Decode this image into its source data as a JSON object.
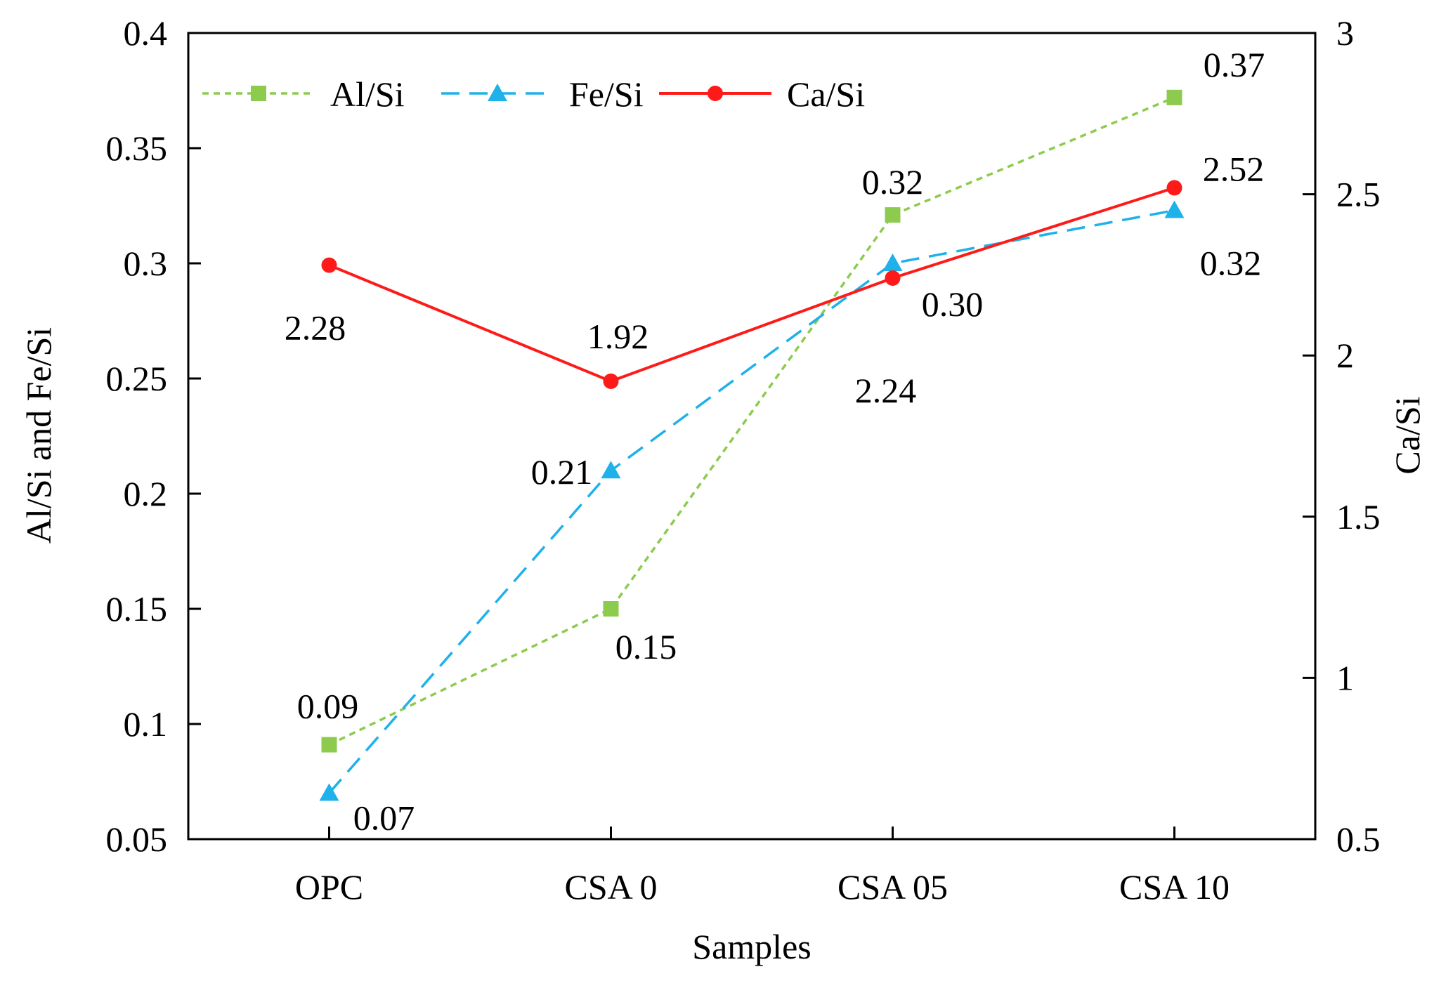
{
  "chart_data": {
    "type": "line",
    "title": "",
    "xlabel": "Samples",
    "ylabel_left": "Al/Si and Fe/Si",
    "ylabel_right": "Ca/Si",
    "categories": [
      "OPC",
      "CSA 0",
      "CSA 05",
      "CSA 10"
    ],
    "ylim_left": [
      0.05,
      0.4
    ],
    "ylim_right": [
      0.5,
      3
    ],
    "yticks_left": [
      "0.05",
      "0.1",
      "0.15",
      "0.2",
      "0.25",
      "0.3",
      "0.35",
      "0.4"
    ],
    "yticks_right": [
      "0.5",
      "1",
      "1.5",
      "2",
      "2.5",
      "3"
    ],
    "legend_position": "top-left",
    "grid": false,
    "series": [
      {
        "name": "Al/Si",
        "axis": "left",
        "color": "#8DCB4F",
        "dash": "short-dash",
        "marker": "square",
        "values": [
          0.091,
          0.15,
          0.321,
          0.372
        ],
        "data_labels": [
          "0.09",
          "0.15",
          "0.32",
          "0.37"
        ]
      },
      {
        "name": "Fe/Si",
        "axis": "left",
        "color": "#1EB1EA",
        "dash": "long-dash",
        "marker": "triangle",
        "values": [
          0.07,
          0.21,
          0.3,
          0.323
        ],
        "data_labels": [
          "0.07",
          "0.21",
          "0.30",
          "0.32"
        ]
      },
      {
        "name": "Ca/Si",
        "axis": "right",
        "color": "#FF1A1A",
        "dash": "solid",
        "marker": "circle",
        "values": [
          2.28,
          1.92,
          2.24,
          2.52
        ],
        "data_labels": [
          "2.28",
          "1.92",
          "2.24",
          "2.52"
        ]
      }
    ]
  }
}
